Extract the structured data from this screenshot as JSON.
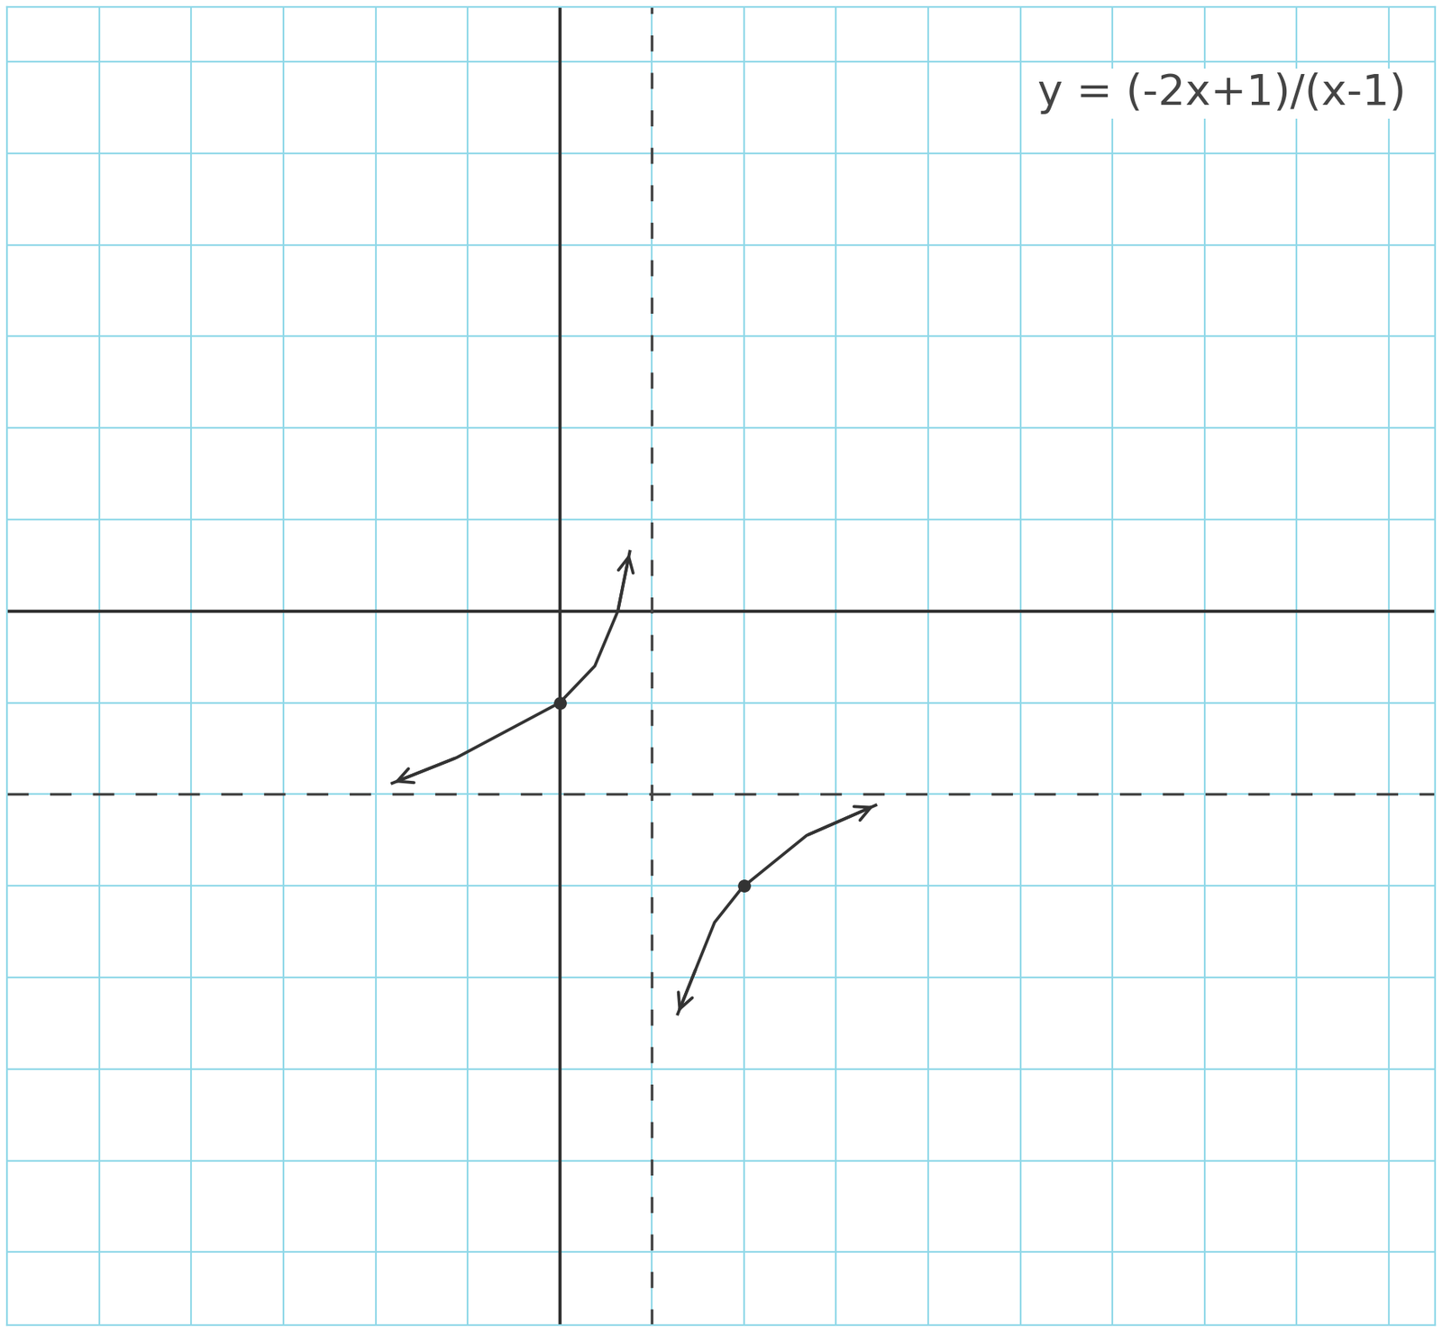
{
  "chart_data": {
    "type": "line",
    "title": "y = (-2x+1)/(x-1)",
    "series": [
      {
        "x": [
          -1.82,
          -1.12,
          0,
          0.38,
          0.63,
          0.76
        ],
        "values": [
          -1.88,
          -1.6,
          -1,
          -0.6,
          0,
          0.65
        ],
        "color": "#333333",
        "line_style": "solid"
      },
      {
        "x": [
          1.28,
          1.48,
          1.68,
          1.98,
          2.68,
          3.43
        ],
        "values": [
          -4.4,
          -3.9,
          -3.4,
          -3.02,
          -2.45,
          -2.12
        ],
        "color": "#333333",
        "line_style": "solid"
      }
    ],
    "points": {
      "x": [
        0,
        2
      ],
      "values": [
        -1,
        -3
      ]
    },
    "vertical_asymptote": 1,
    "horizontal_asymptote": -2,
    "xlim": [
      -6,
      9.5
    ],
    "ylim": [
      -7.8,
      6.6
    ],
    "xticks": [
      -6,
      -5,
      -4,
      -3,
      -2,
      -1,
      0,
      1,
      2,
      3,
      4,
      5,
      6,
      7,
      8,
      9
    ],
    "yticks": [
      -7,
      -6,
      -5,
      -4,
      -3,
      -2,
      -1,
      0,
      1,
      2,
      3,
      4,
      5,
      6
    ],
    "grid": true,
    "tick_labels": false
  }
}
